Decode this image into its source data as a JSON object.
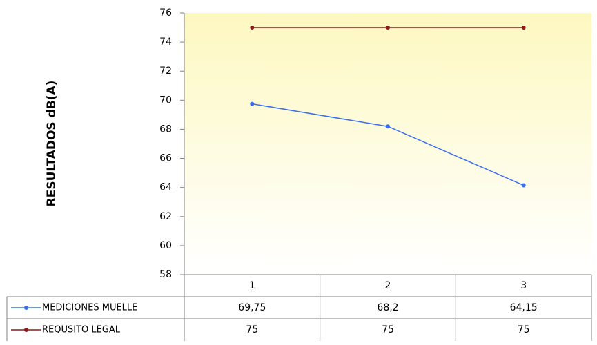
{
  "chart_data": {
    "type": "line",
    "y_label": "RESULTADOS dB(A)",
    "categories": [
      "1",
      "2",
      "3"
    ],
    "series": [
      {
        "name": "MEDICIONES MUELLE",
        "color": "#3b6df0",
        "values": [
          69.75,
          68.2,
          64.15
        ],
        "value_labels": [
          "69,75",
          "68,2",
          "64,15"
        ]
      },
      {
        "name": "REQUSITO LEGAL",
        "color": "#8b1a1a",
        "values": [
          75,
          75,
          75
        ]
      }
    ],
    "ylim": [
      58,
      76
    ],
    "yticks": [
      58,
      60,
      62,
      64,
      66,
      68,
      70,
      72,
      74,
      76
    ]
  }
}
